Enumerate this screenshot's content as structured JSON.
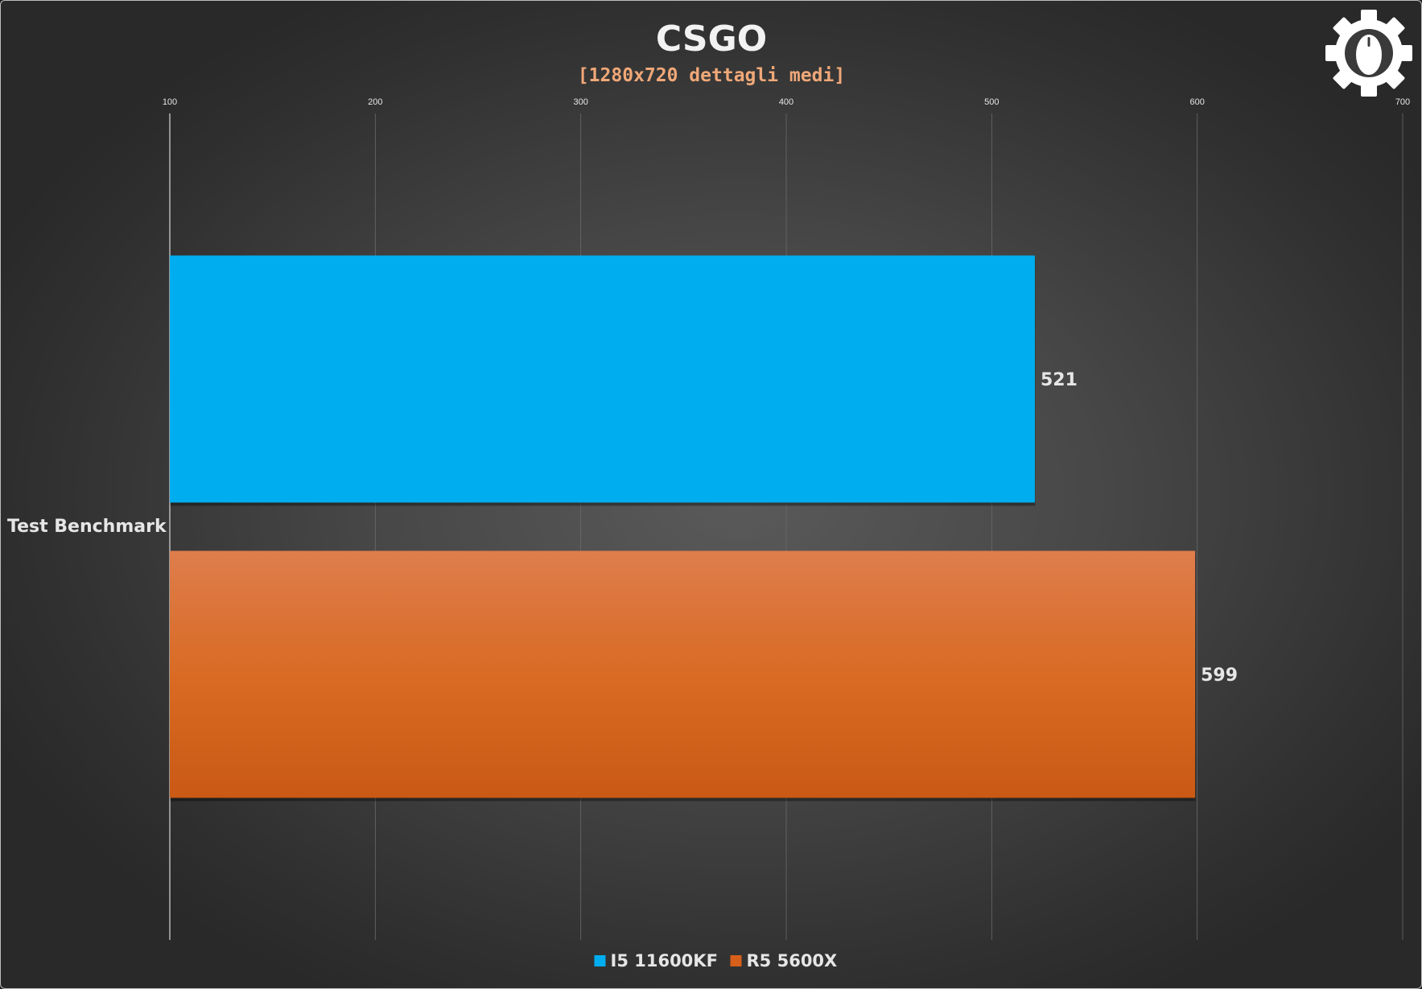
{
  "chart_data": {
    "type": "bar",
    "orientation": "horizontal",
    "title": "CSGO",
    "subtitle": "[1280x720 dettagli medi]",
    "categories": [
      "Test Benchmark"
    ],
    "series": [
      {
        "name": "I5 11600KF",
        "values": [
          521
        ],
        "color": "#00aeef"
      },
      {
        "name": "R5 5600X",
        "values": [
          599
        ],
        "color": "#d65f1a"
      }
    ],
    "xlim": [
      100,
      700
    ],
    "xticks": [
      100,
      200,
      300,
      400,
      500,
      600,
      700
    ],
    "xtick_labels": [
      "100",
      "200",
      "300",
      "400",
      "500",
      "600",
      "700"
    ],
    "xaxis_position": "top",
    "grid": true,
    "legend": "bottom-center",
    "data_labels": true
  },
  "logo": {
    "icon": "gear-mouse-icon"
  }
}
